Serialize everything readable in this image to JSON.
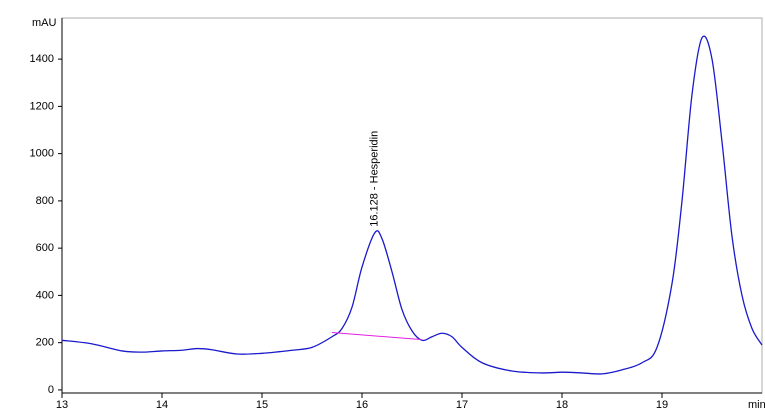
{
  "chart_data": {
    "type": "line",
    "y_label": "mAU",
    "x_label": "min",
    "xlim": [
      13,
      20
    ],
    "xticks": [
      13,
      14,
      15,
      16,
      17,
      18,
      19
    ],
    "ylim": [
      -13,
      1574
    ],
    "yticks": [
      0,
      200,
      400,
      600,
      800,
      1000,
      1200,
      1400
    ],
    "series": [
      {
        "color": "#1a1acc",
        "x": [
          13.0,
          13.3,
          13.6,
          13.8,
          14.0,
          14.2,
          14.35,
          14.5,
          14.75,
          15.0,
          15.3,
          15.5,
          15.7,
          15.8,
          15.9,
          16.0,
          16.128,
          16.2,
          16.3,
          16.4,
          16.5,
          16.6,
          16.7,
          16.8,
          16.9,
          17.0,
          17.2,
          17.5,
          17.8,
          18.0,
          18.2,
          18.4,
          18.6,
          18.8,
          18.95,
          19.1,
          19.2,
          19.3,
          19.4,
          19.5,
          19.6,
          19.7,
          19.8,
          19.9,
          20.0
        ],
        "values": [
          210,
          195,
          165,
          160,
          165,
          168,
          175,
          170,
          152,
          155,
          168,
          180,
          225,
          260,
          350,
          520,
          665,
          640,
          500,
          340,
          250,
          210,
          225,
          240,
          225,
          180,
          115,
          80,
          72,
          75,
          72,
          68,
          85,
          115,
          180,
          450,
          800,
          1250,
          1490,
          1400,
          1050,
          650,
          400,
          260,
          190
        ]
      }
    ],
    "integration_baseline": {
      "color": "#e020e0",
      "x": [
        15.7,
        16.6
      ],
      "values": [
        243,
        213
      ]
    },
    "annotations": [
      {
        "text": "16.128 -  Hesperidin",
        "x": 16.128,
        "y": 665
      }
    ]
  }
}
